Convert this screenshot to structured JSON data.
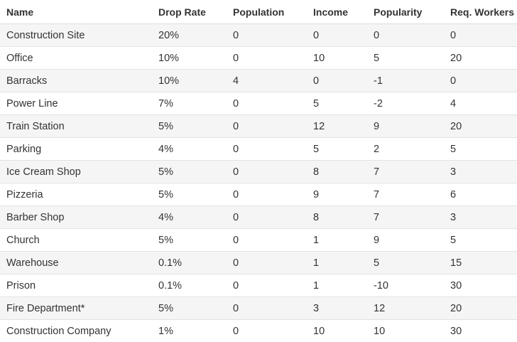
{
  "table": {
    "columns": [
      "Name",
      "Drop Rate",
      "Population",
      "Income",
      "Popularity",
      "Req. Workers"
    ],
    "rows": [
      [
        "Construction Site",
        "20%",
        "0",
        "0",
        "0",
        "0"
      ],
      [
        "Office",
        "10%",
        "0",
        "10",
        "5",
        "20"
      ],
      [
        "Barracks",
        "10%",
        "4",
        "0",
        "-1",
        "0"
      ],
      [
        "Power Line",
        "7%",
        "0",
        "5",
        "-2",
        "4"
      ],
      [
        "Train Station",
        "5%",
        "0",
        "12",
        "9",
        "20"
      ],
      [
        "Parking",
        "4%",
        "0",
        "5",
        "2",
        "5"
      ],
      [
        "Ice Cream Shop",
        "5%",
        "0",
        "8",
        "7",
        "3"
      ],
      [
        "Pizzeria",
        "5%",
        "0",
        "9",
        "7",
        "6"
      ],
      [
        "Barber Shop",
        "4%",
        "0",
        "8",
        "7",
        "3"
      ],
      [
        "Church",
        "5%",
        "0",
        "1",
        "9",
        "5"
      ],
      [
        "Warehouse",
        "0.1%",
        "0",
        "1",
        "5",
        "15"
      ],
      [
        "Prison",
        "0.1%",
        "0",
        "1",
        "-10",
        "30"
      ],
      [
        "Fire Department*",
        "5%",
        "0",
        "3",
        "12",
        "20"
      ],
      [
        "Construction Company",
        "1%",
        "0",
        "10",
        "10",
        "30"
      ]
    ]
  }
}
